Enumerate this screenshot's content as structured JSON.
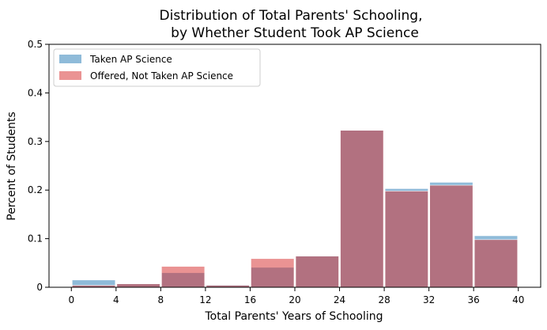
{
  "chart_data": {
    "type": "bar",
    "title": [
      "Distribution of Total Parents' Schooling,",
      "by Whether Student Took AP Science"
    ],
    "xlabel": "Total Parents' Years of Schooling",
    "ylabel": "Percent of Students",
    "xlim": [
      -2,
      42
    ],
    "ylim": [
      0,
      0.5
    ],
    "xticks": [
      "0",
      "4",
      "8",
      "12",
      "16",
      "20",
      "24",
      "28",
      "32",
      "36",
      "40"
    ],
    "yticks": [
      "0",
      "0.1",
      "0.2",
      "0.3",
      "0.4",
      "0.5"
    ],
    "bins": [
      [
        0,
        4
      ],
      [
        4,
        8
      ],
      [
        8,
        12
      ],
      [
        12,
        16
      ],
      [
        16,
        20
      ],
      [
        20,
        24
      ],
      [
        24,
        28
      ],
      [
        28,
        32
      ],
      [
        32,
        36
      ],
      [
        36,
        40
      ]
    ],
    "grid": false,
    "legend_position": "top-left",
    "series": [
      {
        "name": "Taken AP Science",
        "color": "#1f77b4",
        "alpha": 0.5,
        "values": [
          0.015,
          0.007,
          0.03,
          0.005,
          0.041,
          0.065,
          0.323,
          0.203,
          0.216,
          0.106
        ]
      },
      {
        "name": "Offered, Not Taken AP Science",
        "color": "#d62728",
        "alpha": 0.5,
        "values": [
          0.004,
          0.007,
          0.043,
          0.004,
          0.059,
          0.064,
          0.323,
          0.198,
          0.21,
          0.098
        ]
      }
    ]
  }
}
